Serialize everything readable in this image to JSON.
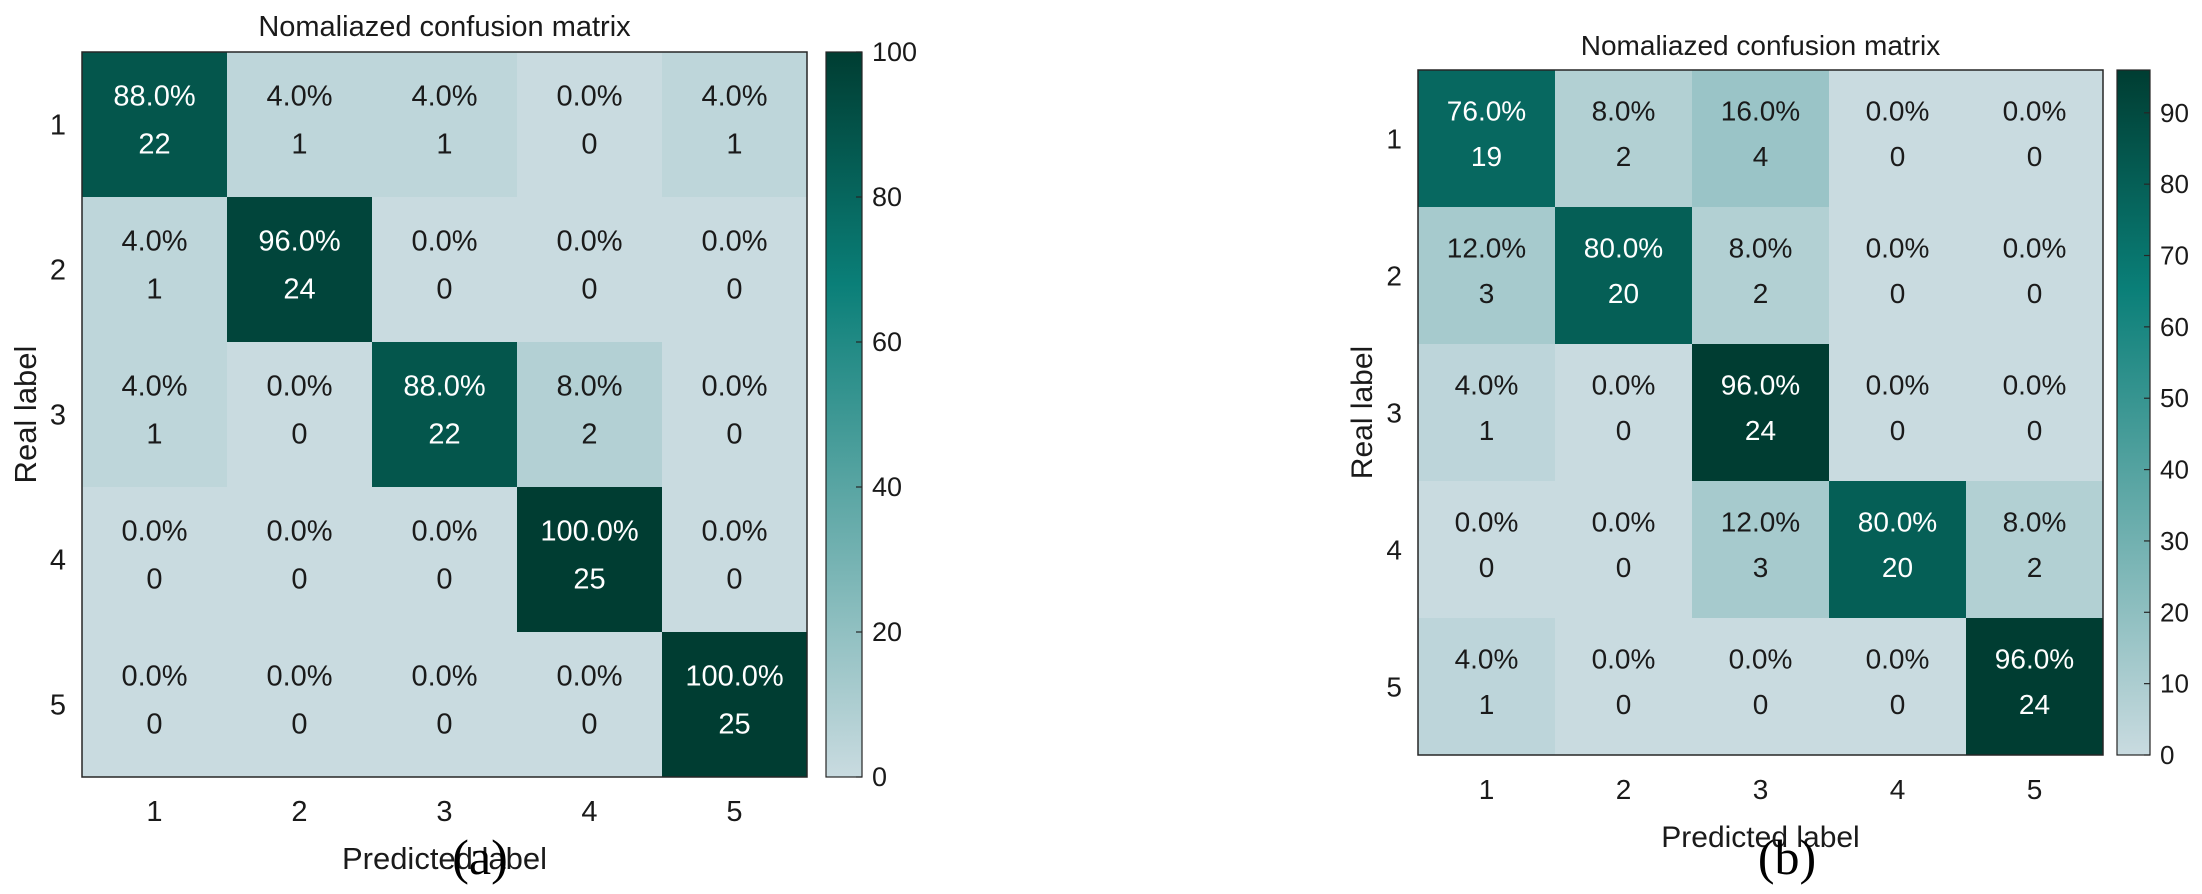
{
  "chart_data": [
    {
      "type": "heatmap",
      "panel": "(a)",
      "title": "Nomaliazed confusion matrix",
      "xlabel": "Predicted label",
      "ylabel": "Real label",
      "x_ticks": [
        "1",
        "2",
        "3",
        "4",
        "5"
      ],
      "y_ticks": [
        "1",
        "2",
        "3",
        "4",
        "5"
      ],
      "percent": [
        [
          "88.0%",
          "4.0%",
          "4.0%",
          "0.0%",
          "4.0%"
        ],
        [
          "4.0%",
          "96.0%",
          "0.0%",
          "0.0%",
          "0.0%"
        ],
        [
          "4.0%",
          "0.0%",
          "88.0%",
          "8.0%",
          "0.0%"
        ],
        [
          "0.0%",
          "0.0%",
          "0.0%",
          "100.0%",
          "0.0%"
        ],
        [
          "0.0%",
          "0.0%",
          "0.0%",
          "0.0%",
          "100.0%"
        ]
      ],
      "values": [
        [
          88,
          4,
          4,
          0,
          4
        ],
        [
          4,
          96,
          0,
          0,
          0
        ],
        [
          4,
          0,
          88,
          8,
          0
        ],
        [
          0,
          0,
          0,
          100,
          0
        ],
        [
          0,
          0,
          0,
          0,
          100
        ]
      ],
      "counts": [
        [
          22,
          1,
          1,
          0,
          1
        ],
        [
          1,
          24,
          0,
          0,
          0
        ],
        [
          1,
          0,
          22,
          2,
          0
        ],
        [
          0,
          0,
          0,
          25,
          0
        ],
        [
          0,
          0,
          0,
          0,
          25
        ]
      ],
      "colorbar": {
        "range": [
          0,
          100
        ],
        "ticks": [
          "0",
          "20",
          "40",
          "60",
          "80",
          "100"
        ]
      }
    },
    {
      "type": "heatmap",
      "panel": "(b)",
      "title": "Nomaliazed confusion matrix",
      "xlabel": "Predicted label",
      "ylabel": "Real label",
      "x_ticks": [
        "1",
        "2",
        "3",
        "4",
        "5"
      ],
      "y_ticks": [
        "1",
        "2",
        "3",
        "4",
        "5"
      ],
      "percent": [
        [
          "76.0%",
          "8.0%",
          "16.0%",
          "0.0%",
          "0.0%"
        ],
        [
          "12.0%",
          "80.0%",
          "8.0%",
          "0.0%",
          "0.0%"
        ],
        [
          "4.0%",
          "0.0%",
          "96.0%",
          "0.0%",
          "0.0%"
        ],
        [
          "0.0%",
          "0.0%",
          "12.0%",
          "80.0%",
          "8.0%"
        ],
        [
          "4.0%",
          "0.0%",
          "0.0%",
          "0.0%",
          "96.0%"
        ]
      ],
      "values": [
        [
          76,
          8,
          16,
          0,
          0
        ],
        [
          12,
          80,
          8,
          0,
          0
        ],
        [
          4,
          0,
          96,
          0,
          0
        ],
        [
          0,
          0,
          12,
          80,
          8
        ],
        [
          4,
          0,
          0,
          0,
          96
        ]
      ],
      "counts": [
        [
          19,
          2,
          4,
          0,
          0
        ],
        [
          3,
          20,
          2,
          0,
          0
        ],
        [
          1,
          0,
          24,
          0,
          0
        ],
        [
          0,
          0,
          3,
          20,
          2
        ],
        [
          1,
          0,
          0,
          0,
          24
        ]
      ],
      "colorbar": {
        "range": [
          0,
          96
        ],
        "ticks": [
          "0",
          "10",
          "20",
          "30",
          "40",
          "50",
          "60",
          "70",
          "80",
          "90"
        ]
      }
    }
  ],
  "colors": {
    "low": "#c9dbe0",
    "mid": "#0a7f78",
    "high": "#003d32",
    "text_dark": "#1a1a1a",
    "text_light": "#ffffff"
  }
}
